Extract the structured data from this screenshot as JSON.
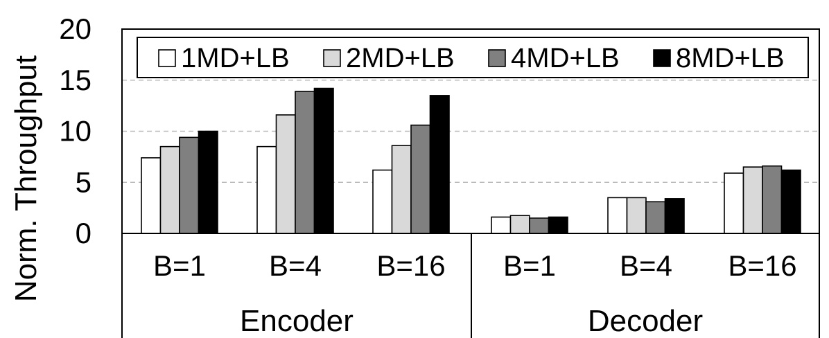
{
  "chart_data": {
    "type": "bar",
    "ylabel": "Norm. Throughput",
    "ylim": [
      0,
      20
    ],
    "yticks": [
      0,
      5,
      10,
      15,
      20
    ],
    "grid": "dashed horizontal at 5, 10, 15",
    "legend_position": "top",
    "groups": [
      {
        "label": "Encoder",
        "categories": [
          "B=1",
          "B=4",
          "B=16"
        ]
      },
      {
        "label": "Decoder",
        "categories": [
          "B=1",
          "B=4",
          "B=16"
        ]
      }
    ],
    "series": [
      {
        "name": "1MD+LB",
        "color": "#ffffff",
        "values": [
          7.4,
          8.5,
          6.2,
          1.6,
          3.5,
          5.9
        ]
      },
      {
        "name": "2MD+LB",
        "color": "#d9d9d9",
        "values": [
          8.5,
          11.6,
          8.6,
          1.75,
          3.5,
          6.5
        ]
      },
      {
        "name": "4MD+LB",
        "color": "#808080",
        "values": [
          9.4,
          13.9,
          10.6,
          1.5,
          3.1,
          6.6
        ]
      },
      {
        "name": "8MD+LB",
        "color": "#000000",
        "values": [
          10.0,
          14.2,
          13.5,
          1.6,
          3.4,
          6.2
        ]
      }
    ]
  }
}
